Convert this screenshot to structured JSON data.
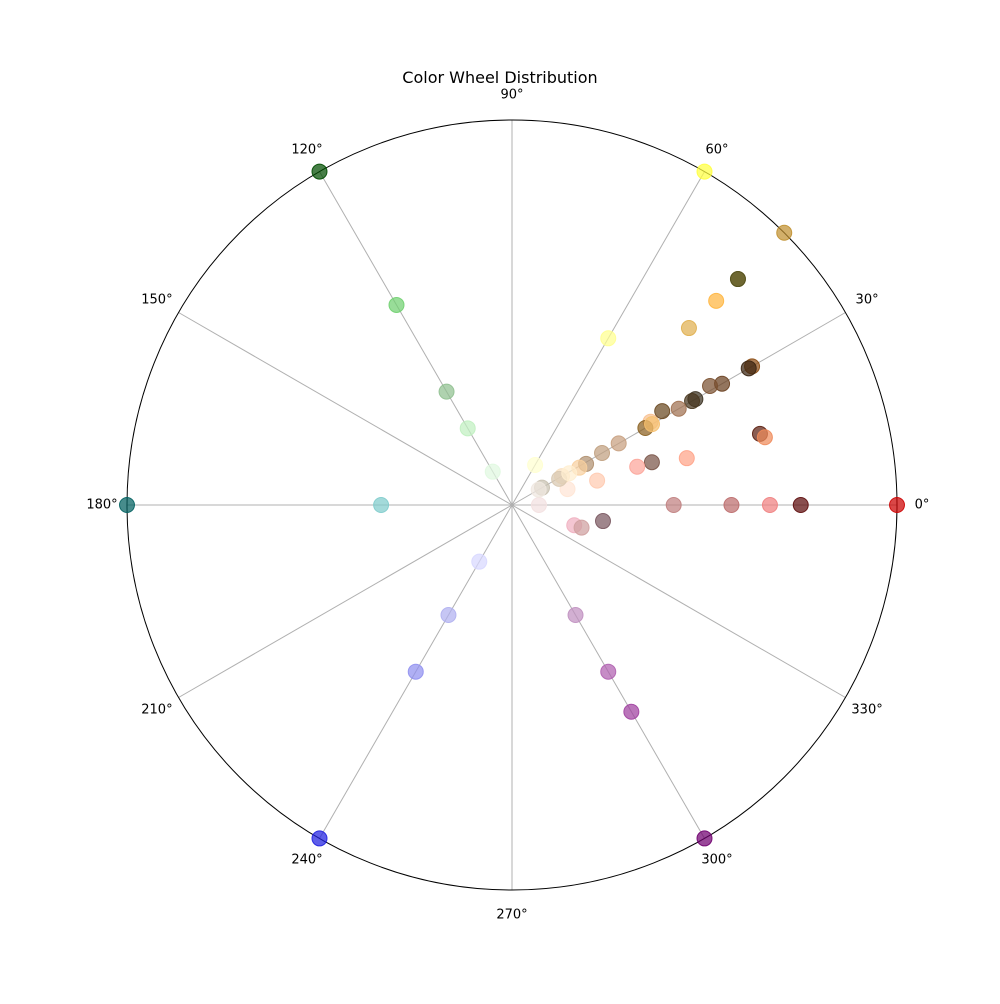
{
  "chart_data": {
    "type": "scatter",
    "projection": "polar",
    "title": "Color Wheel Distribution",
    "theta_unit": "degrees",
    "theta_ticks": [
      "0°",
      "30°",
      "60°",
      "90°",
      "120°",
      "150°",
      "180°",
      "210°",
      "240°",
      "270°",
      "300°",
      "330°"
    ],
    "theta_tick_values": [
      0,
      30,
      60,
      90,
      120,
      150,
      180,
      210,
      240,
      270,
      300,
      330
    ],
    "rlim": [
      0,
      1
    ],
    "r_tick_labels": false,
    "grid": true,
    "legend": "none",
    "points": [
      {
        "theta": 0,
        "r": 1.0,
        "color": "#cc0000"
      },
      {
        "theta": 0,
        "r": 0.75,
        "color": "#5c0a0a"
      },
      {
        "theta": 0,
        "r": 0.67,
        "color": "#f08080"
      },
      {
        "theta": 0,
        "r": 0.57,
        "color": "#bc6c6c"
      },
      {
        "theta": 0,
        "r": 0.42,
        "color": "#c08080"
      },
      {
        "theta": 0,
        "r": 0.07,
        "color": "#f3e0e0"
      },
      {
        "theta": 16,
        "r": 0.67,
        "color": "#5c1f10"
      },
      {
        "theta": 15,
        "r": 0.68,
        "color": "#ef8a5a"
      },
      {
        "theta": 17,
        "r": 0.38,
        "color": "#7a5448"
      },
      {
        "theta": 15,
        "r": 0.47,
        "color": "#ffa388"
      },
      {
        "theta": 17,
        "r": 0.34,
        "color": "#fca59a"
      },
      {
        "theta": 16,
        "r": 0.23,
        "color": "#ffcab0"
      },
      {
        "theta": 16,
        "r": 0.15,
        "color": "#ffe5d5"
      },
      {
        "theta": -10,
        "r": 0.24,
        "color": "#7a5860"
      },
      {
        "theta": -18,
        "r": 0.17,
        "color": "#f0b0c0"
      },
      {
        "theta": -18,
        "r": 0.19,
        "color": "#cfa0a0"
      },
      {
        "theta": 30,
        "r": 0.72,
        "color": "#8a4a10"
      },
      {
        "theta": 30,
        "r": 0.71,
        "color": "#3a2410"
      },
      {
        "theta": 30,
        "r": 0.63,
        "color": "#6a4020"
      },
      {
        "theta": 31,
        "r": 0.6,
        "color": "#7a5030"
      },
      {
        "theta": 30,
        "r": 0.55,
        "color": "#3a3020"
      },
      {
        "theta": 30,
        "r": 0.54,
        "color": "#4a3820"
      },
      {
        "theta": 30,
        "r": 0.5,
        "color": "#a07050"
      },
      {
        "theta": 31,
        "r": 0.42,
        "color": "#f8c090"
      },
      {
        "theta": 30,
        "r": 0.4,
        "color": "#8a6020"
      },
      {
        "theta": 32,
        "r": 0.46,
        "color": "#6a4820"
      },
      {
        "theta": 30,
        "r": 0.42,
        "color": "#f5c070"
      },
      {
        "theta": 30,
        "r": 0.32,
        "color": "#c8a080"
      },
      {
        "theta": 30,
        "r": 0.27,
        "color": "#c0a080"
      },
      {
        "theta": 29,
        "r": 0.22,
        "color": "#b09070"
      },
      {
        "theta": 29,
        "r": 0.2,
        "color": "#f8d0a0"
      },
      {
        "theta": 30,
        "r": 0.15,
        "color": "#f8e0c0"
      },
      {
        "theta": 29,
        "r": 0.14,
        "color": "#d8c8b0"
      },
      {
        "theta": 29,
        "r": 0.17,
        "color": "#ffeed0"
      },
      {
        "theta": 30,
        "r": 0.09,
        "color": "#c8c0b0"
      },
      {
        "theta": 30,
        "r": 0.08,
        "color": "#f0e8e0"
      },
      {
        "theta": 45,
        "r": 0.83,
        "color": "#a08020"
      },
      {
        "theta": 45,
        "r": 0.83,
        "color": "#505020"
      },
      {
        "theta": 45,
        "r": 1.0,
        "color": "#c09030"
      },
      {
        "theta": 45,
        "r": 0.75,
        "color": "#ffb640"
      },
      {
        "theta": 45,
        "r": 0.65,
        "color": "#e0b050"
      },
      {
        "theta": 60,
        "r": 1.0,
        "color": "#ffff40"
      },
      {
        "theta": 60,
        "r": 0.5,
        "color": "#ffff90"
      },
      {
        "theta": 60,
        "r": 0.12,
        "color": "#ffffd0"
      },
      {
        "theta": 120,
        "r": 1.0,
        "color": "#004d00"
      },
      {
        "theta": 120,
        "r": 0.6,
        "color": "#70d070"
      },
      {
        "theta": 120,
        "r": 0.34,
        "color": "#90c090"
      },
      {
        "theta": 120,
        "r": 0.23,
        "color": "#c0f0c0"
      },
      {
        "theta": 120,
        "r": 0.1,
        "color": "#e0f8e0"
      },
      {
        "theta": 180,
        "r": 1.0,
        "color": "#006060"
      },
      {
        "theta": 180,
        "r": 0.34,
        "color": "#80cccc"
      },
      {
        "theta": 240,
        "r": 1.0,
        "color": "#2020e0"
      },
      {
        "theta": 240,
        "r": 0.5,
        "color": "#9090f0"
      },
      {
        "theta": 240,
        "r": 0.33,
        "color": "#b0b0f0"
      },
      {
        "theta": 240,
        "r": 0.17,
        "color": "#d8d8ff"
      },
      {
        "theta": 300,
        "r": 1.0,
        "color": "#700070"
      },
      {
        "theta": 300,
        "r": 0.62,
        "color": "#a040a0"
      },
      {
        "theta": 300,
        "r": 0.5,
        "color": "#b060b0"
      },
      {
        "theta": 300,
        "r": 0.33,
        "color": "#c090c0"
      }
    ]
  }
}
